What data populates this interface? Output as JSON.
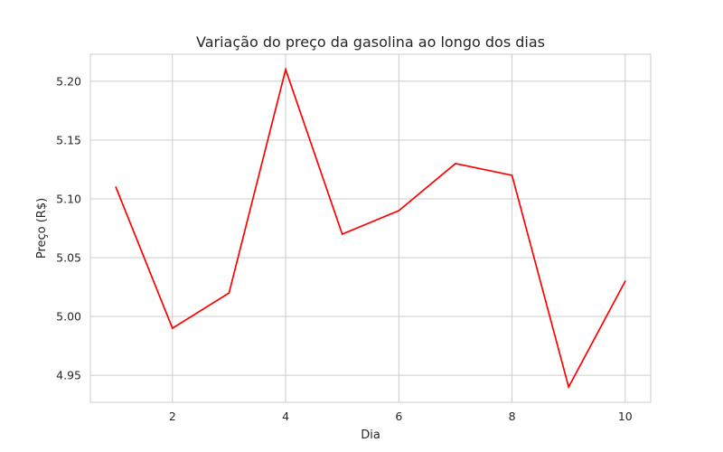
{
  "chart_data": {
    "type": "line",
    "title": "Variação do preço da gasolina ao longo dos dias",
    "xlabel": "Dia",
    "ylabel": "Preço (R$)",
    "x": [
      1,
      2,
      3,
      4,
      5,
      6,
      7,
      8,
      9,
      10
    ],
    "series": [
      {
        "values": [
          5.11,
          4.99,
          5.02,
          5.21,
          5.07,
          5.09,
          5.13,
          5.12,
          4.94,
          5.03
        ],
        "color": "#ff0000"
      }
    ],
    "xlim": [
      0.55,
      10.45
    ],
    "ylim": [
      4.927,
      5.223
    ],
    "xticks": [
      2,
      4,
      6,
      8,
      10
    ],
    "xtick_labels": [
      "2",
      "4",
      "6",
      "8",
      "10"
    ],
    "yticks": [
      4.95,
      5.0,
      5.05,
      5.1,
      5.15,
      5.2
    ],
    "ytick_labels": [
      "4.95",
      "5.00",
      "5.05",
      "5.10",
      "5.15",
      "5.20"
    ],
    "grid": true,
    "legend": "none"
  }
}
